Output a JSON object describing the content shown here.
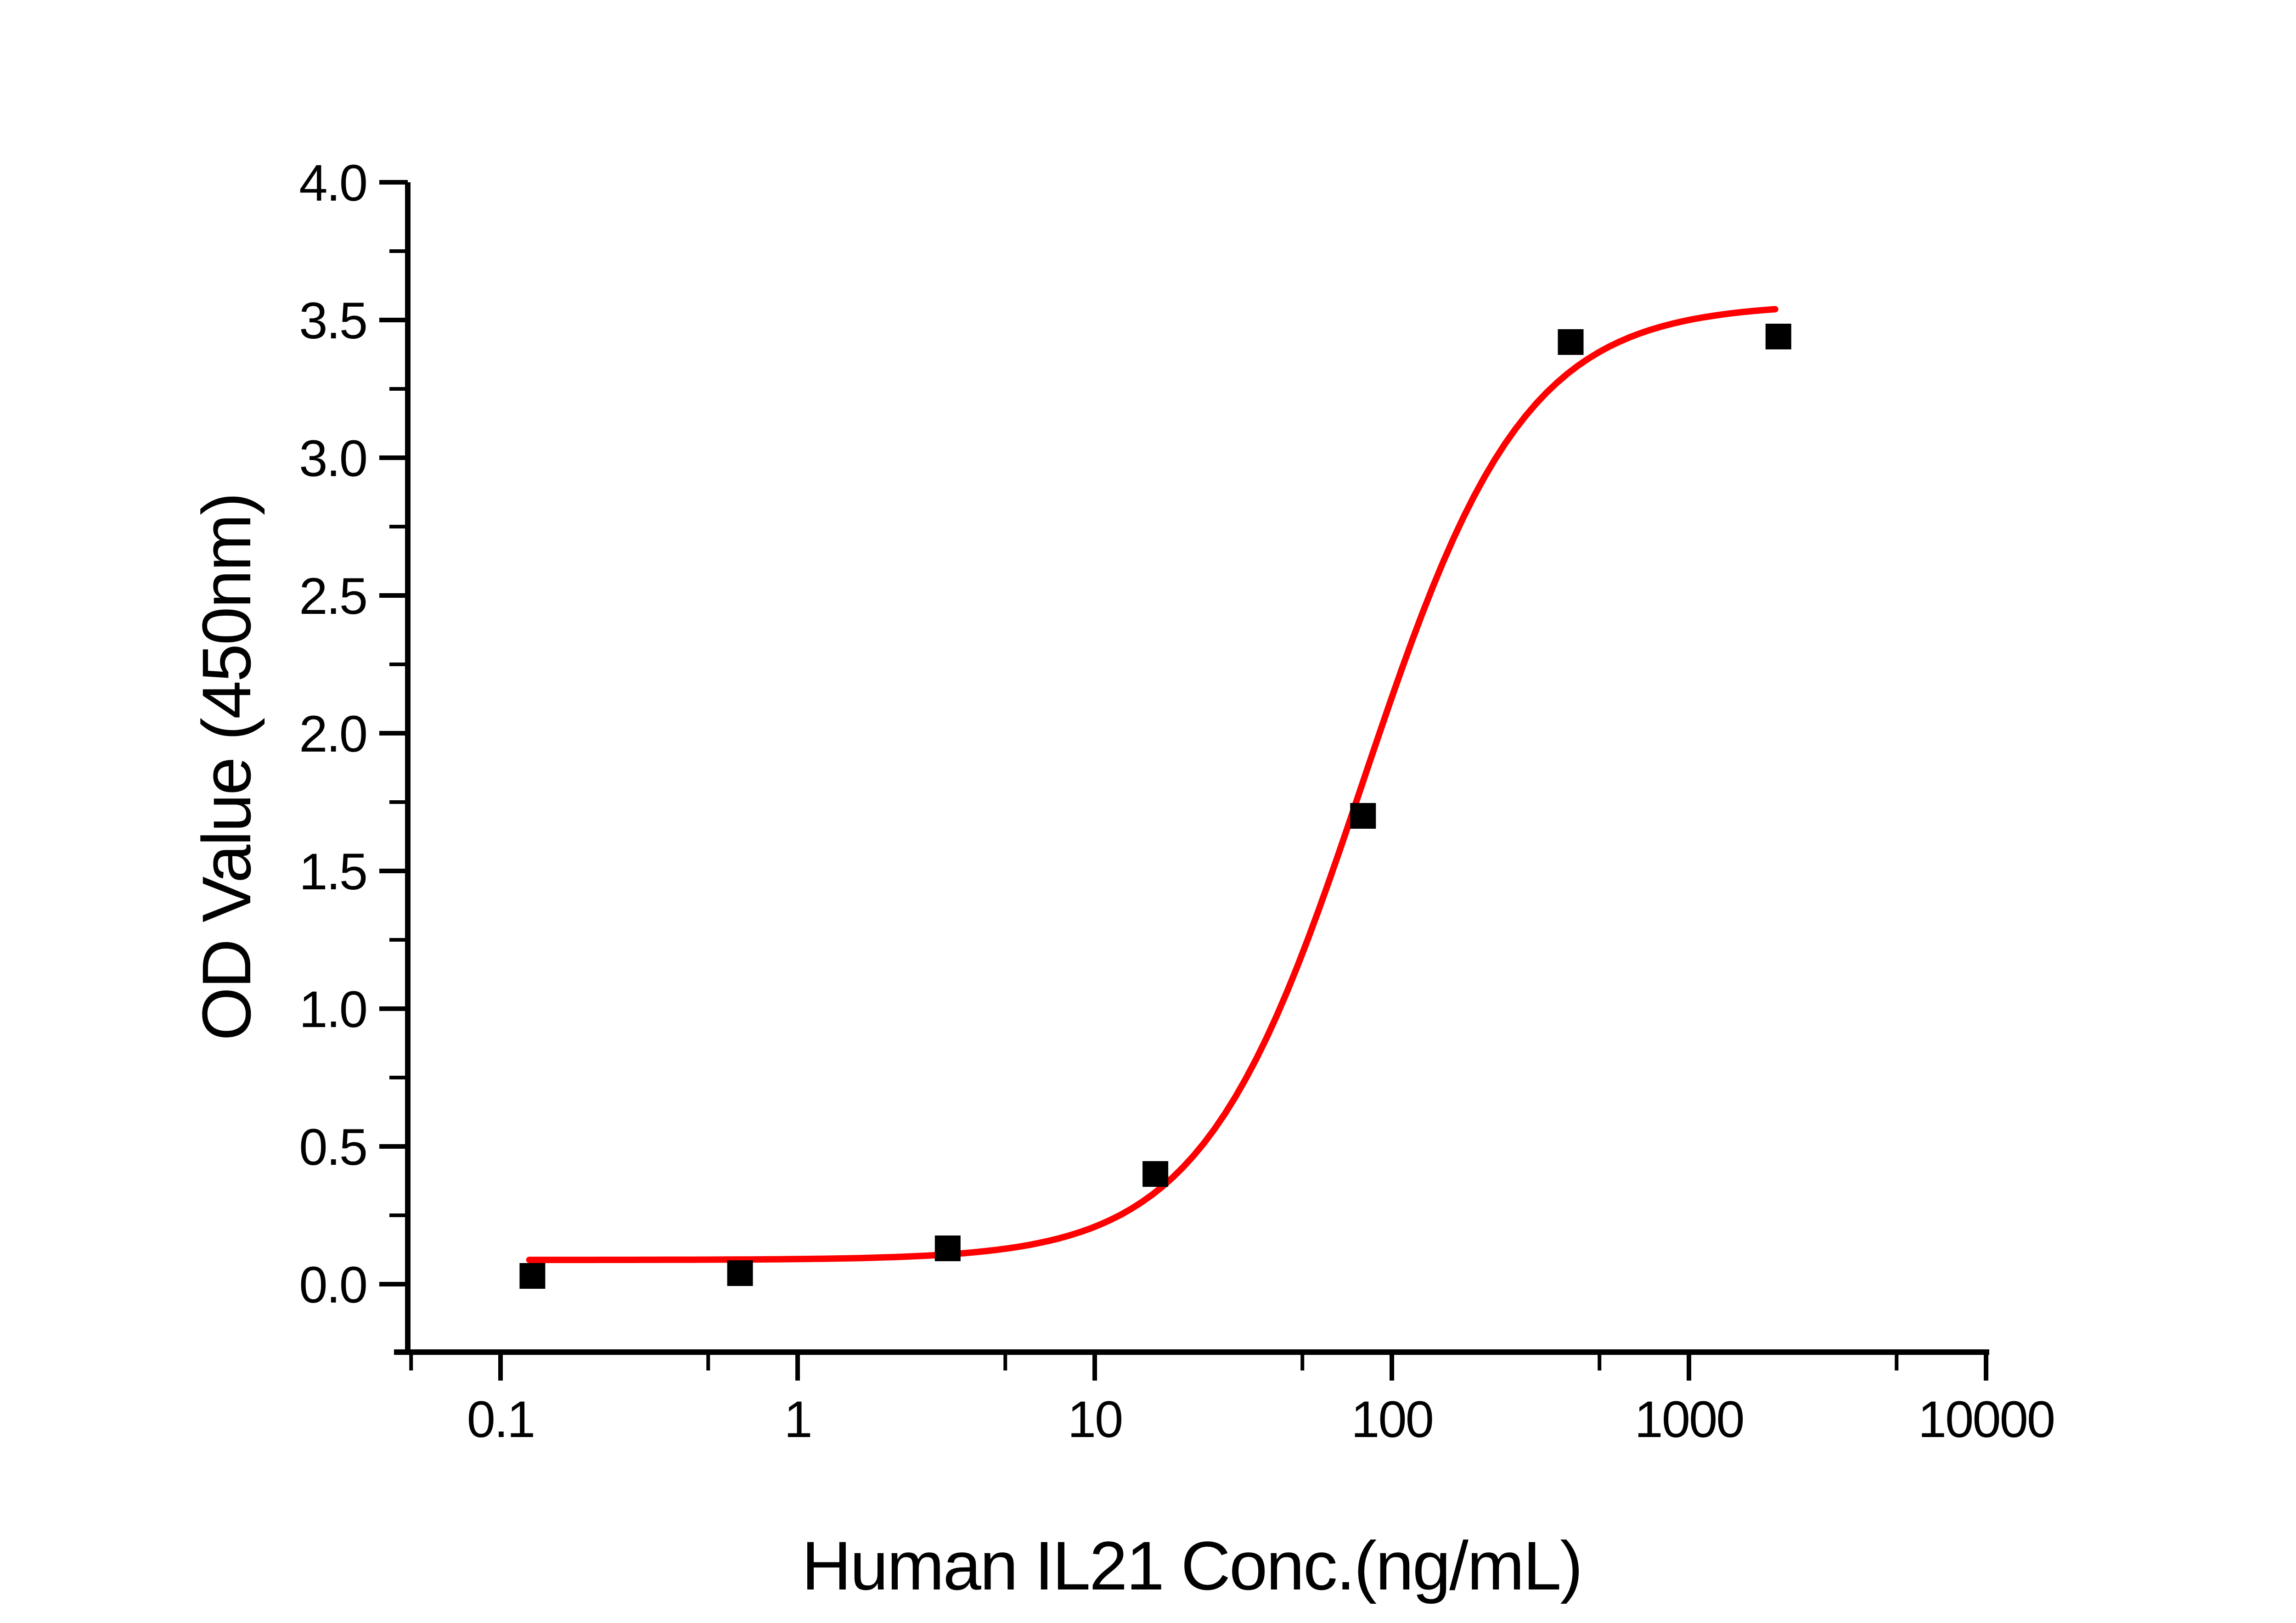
{
  "chart_data": {
    "type": "scatter",
    "title": "",
    "xlabel": "Human IL21 Conc.(ng/mL)",
    "ylabel": "OD Value (450nm)",
    "x_scale": "log",
    "x_range": [
      0.046,
      10000
    ],
    "y_range": [
      -0.25,
      4.0
    ],
    "grid": "off",
    "legend": "none",
    "frame": "left-bottom-axes-only",
    "background_color": "#ffffff",
    "axis_color": "#000000",
    "x_major_ticks": [
      0.1,
      1,
      10,
      100,
      1000,
      10000
    ],
    "x_major_tick_labels": [
      "0.1",
      "1",
      "10",
      "100",
      "1000",
      "10000"
    ],
    "x_minor_ticks": [
      0.05,
      0.5,
      5,
      50,
      500,
      5000
    ],
    "y_major_ticks": [
      0.0,
      0.5,
      1.0,
      1.5,
      2.0,
      2.5,
      3.0,
      3.5,
      4.0
    ],
    "y_major_tick_labels": [
      "0.0",
      "0.5",
      "1.0",
      "1.5",
      "2.0",
      "2.5",
      "3.0",
      "3.5",
      "4.0"
    ],
    "y_minor_ticks": [
      0.25,
      0.75,
      1.25,
      1.75,
      2.25,
      2.75,
      3.25,
      3.75
    ],
    "series": [
      {
        "name": "ELISA data points",
        "type": "scatter",
        "marker": "filled-square",
        "marker_color": "#000000",
        "x": [
          0.128,
          0.64,
          3.2,
          16,
          80,
          400,
          2000
        ],
        "y": [
          0.03,
          0.04,
          0.13,
          0.4,
          1.7,
          3.42,
          3.44
        ]
      },
      {
        "name": "4PL fit curve",
        "type": "line",
        "line_color": "#ff0000",
        "fit": {
          "model": "4PL",
          "bottom": 0.088,
          "top": 3.56,
          "ec50": 80,
          "hill": 1.6,
          "x_start": 0.125,
          "x_end": 1950
        }
      }
    ]
  }
}
